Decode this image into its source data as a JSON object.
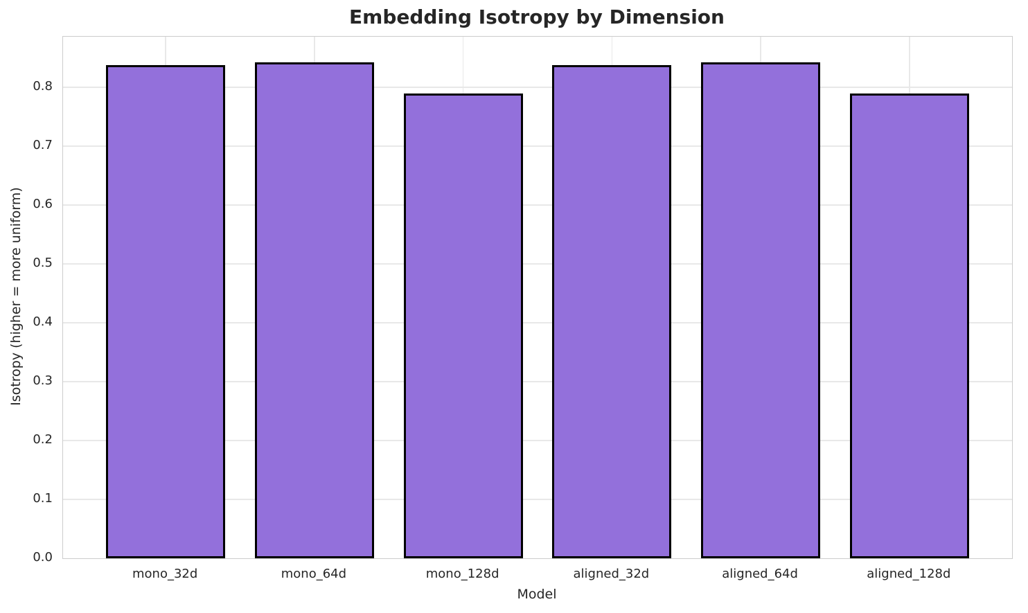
{
  "chart_data": {
    "type": "bar",
    "title": "Embedding Isotropy by Dimension",
    "xlabel": "Model",
    "ylabel": "Isotropy (higher = more uniform)",
    "categories": [
      "mono_32d",
      "mono_64d",
      "mono_128d",
      "aligned_32d",
      "aligned_64d",
      "aligned_128d"
    ],
    "values": [
      0.838,
      0.843,
      0.79,
      0.838,
      0.843,
      0.79
    ],
    "ytick_values": [
      0.0,
      0.1,
      0.2,
      0.3,
      0.4,
      0.5,
      0.6,
      0.7,
      0.8
    ],
    "ytick_labels": [
      "0.0",
      "0.1",
      "0.2",
      "0.3",
      "0.4",
      "0.5",
      "0.6",
      "0.7",
      "0.8"
    ],
    "ylim": [
      0,
      0.886
    ],
    "xlim": [
      -0.69,
      5.69
    ],
    "bar_width_units": 0.8,
    "grid": true,
    "legend": null,
    "colors": {
      "bar_fill": "#9370DB",
      "bar_edge": "#000000",
      "gridline": "#e8e8e8",
      "spine": "#cccccc",
      "text": "#262626",
      "background": "#ffffff"
    }
  }
}
